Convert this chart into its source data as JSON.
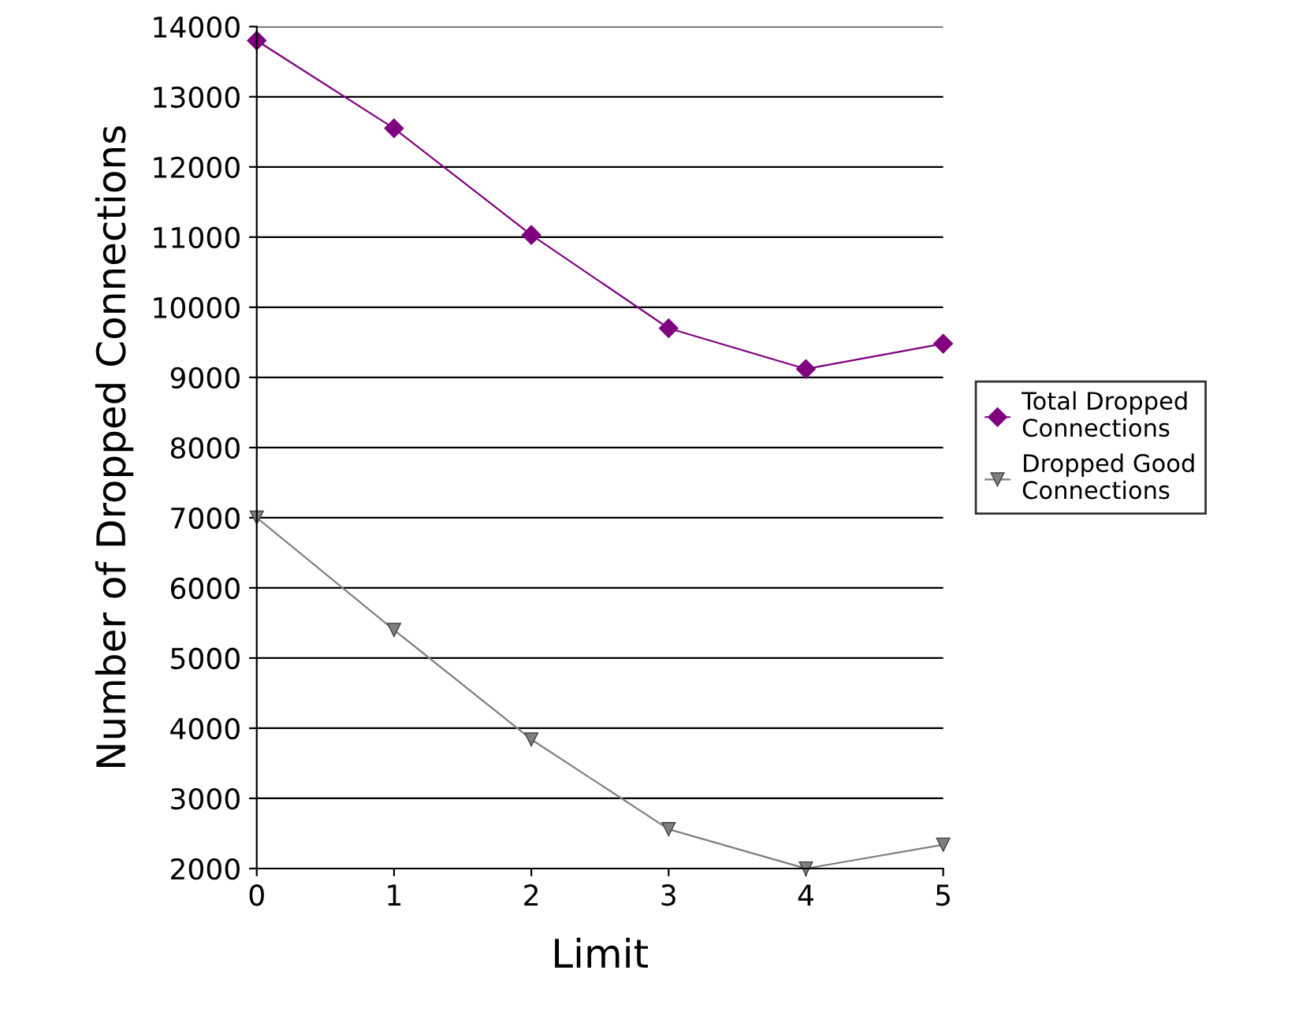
{
  "chart_data": {
    "type": "line",
    "xlabel": "Limit",
    "ylabel": "Number of Dropped Connections",
    "x": [
      0,
      1,
      2,
      3,
      4,
      5
    ],
    "series": [
      {
        "name": "Total Dropped\nConnections",
        "color": "#800080",
        "marker": "diamond",
        "values": [
          13800,
          12550,
          11030,
          9700,
          9120,
          9480
        ]
      },
      {
        "name": "Dropped Good\nConnections",
        "color": "#808080",
        "marker": "triangle",
        "values": [
          7000,
          5400,
          3840,
          2560,
          2000,
          2340
        ]
      }
    ],
    "xlim": [
      0,
      5
    ],
    "xticks": [
      0,
      1,
      2,
      3,
      4,
      5
    ],
    "ylim": [
      2000,
      14000
    ],
    "yticks": [
      2000,
      3000,
      4000,
      5000,
      6000,
      7000,
      8000,
      9000,
      10000,
      11000,
      12000,
      13000,
      14000
    ],
    "grid": "y",
    "legend": "right"
  }
}
